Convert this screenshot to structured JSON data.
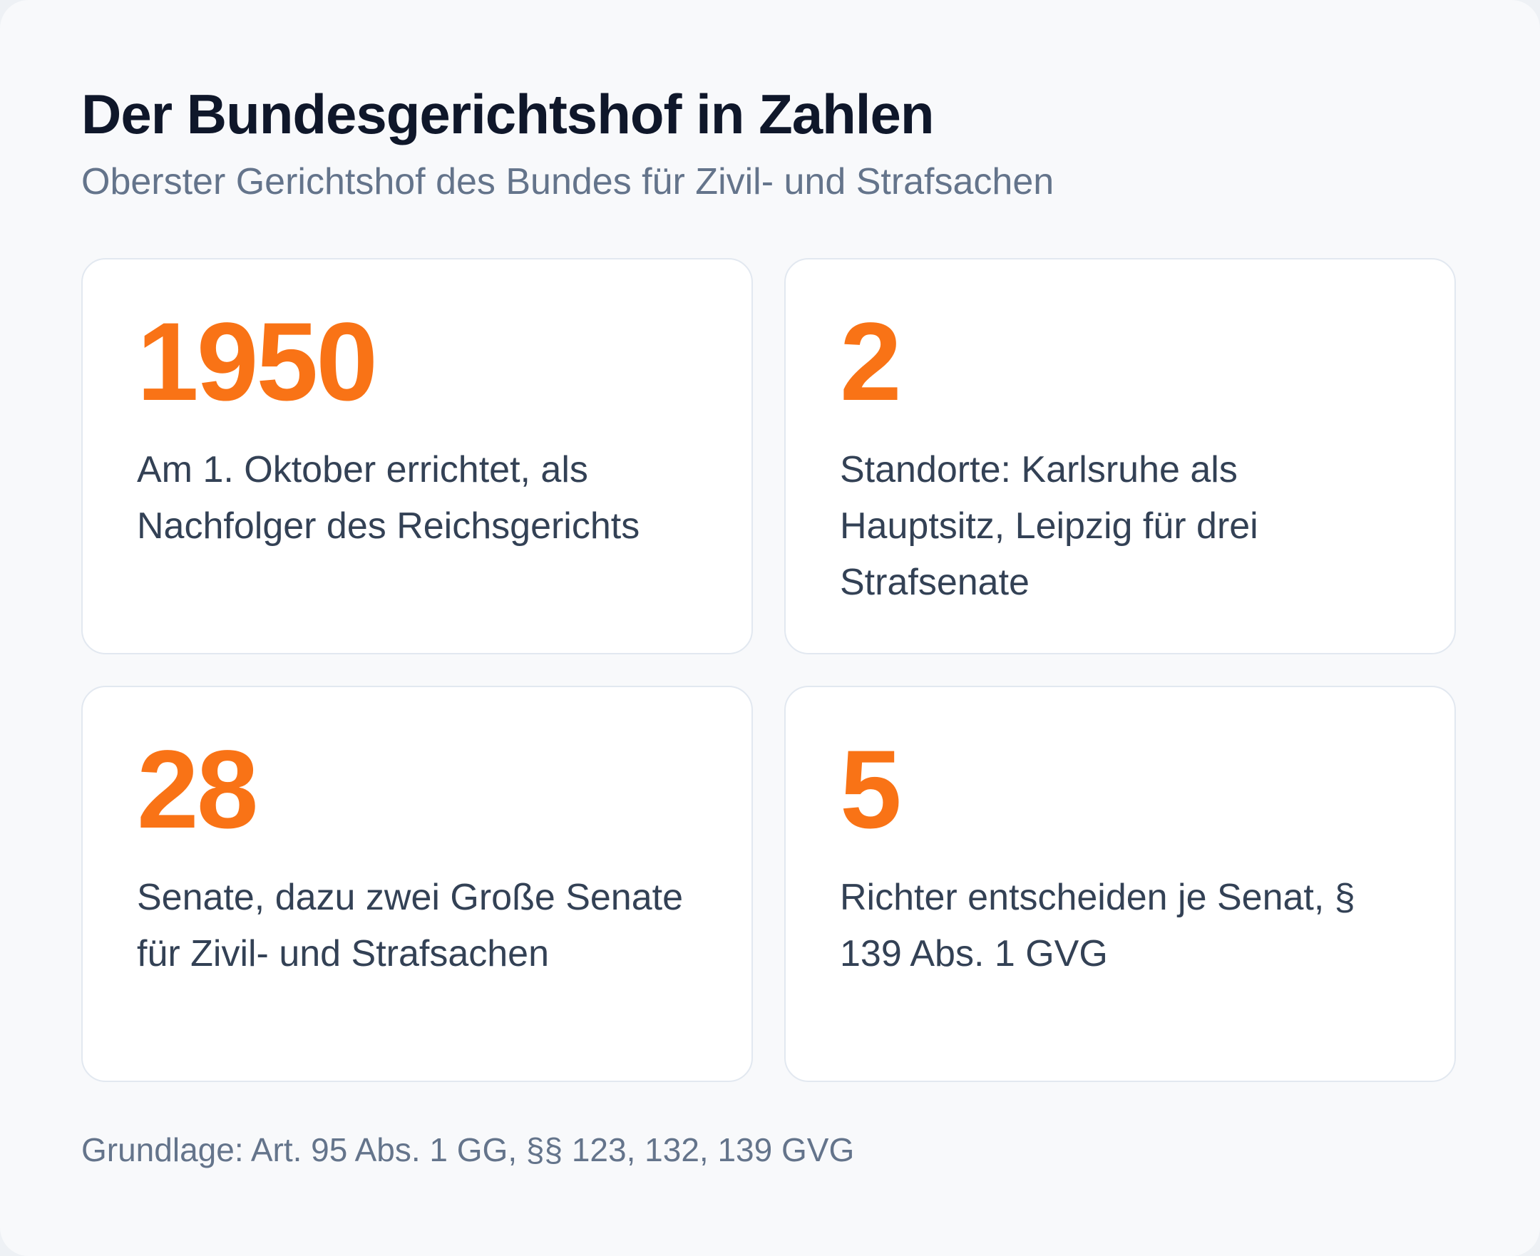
{
  "header": {
    "title": "Der Bundesgerichtshof in Zahlen",
    "subtitle": "Oberster Gerichtshof des Bundes für Zivil- und Strafsachen"
  },
  "stats": [
    {
      "number": "1950",
      "description": "Am 1. Oktober errichtet, als Nachfolger des Reichsgerichts"
    },
    {
      "number": "2",
      "description": "Standorte: Karlsruhe als Hauptsitz, Leipzig für drei Strafsenate"
    },
    {
      "number": "28",
      "description": "Senate, dazu zwei Große Senate für Zivil- und Strafsachen"
    },
    {
      "number": "5",
      "description": "Richter entscheiden je Senat, § 139 Abs. 1 GVG"
    }
  ],
  "footnote": "Grundlage: Art. 95 Abs. 1 GG, §§ 123, 132, 139 GVG",
  "colors": {
    "accent": "#f97316",
    "title": "#0f172a",
    "muted": "#64748b",
    "body": "#334155",
    "card_border": "#e2e8f0",
    "background": "#f8f9fb"
  }
}
